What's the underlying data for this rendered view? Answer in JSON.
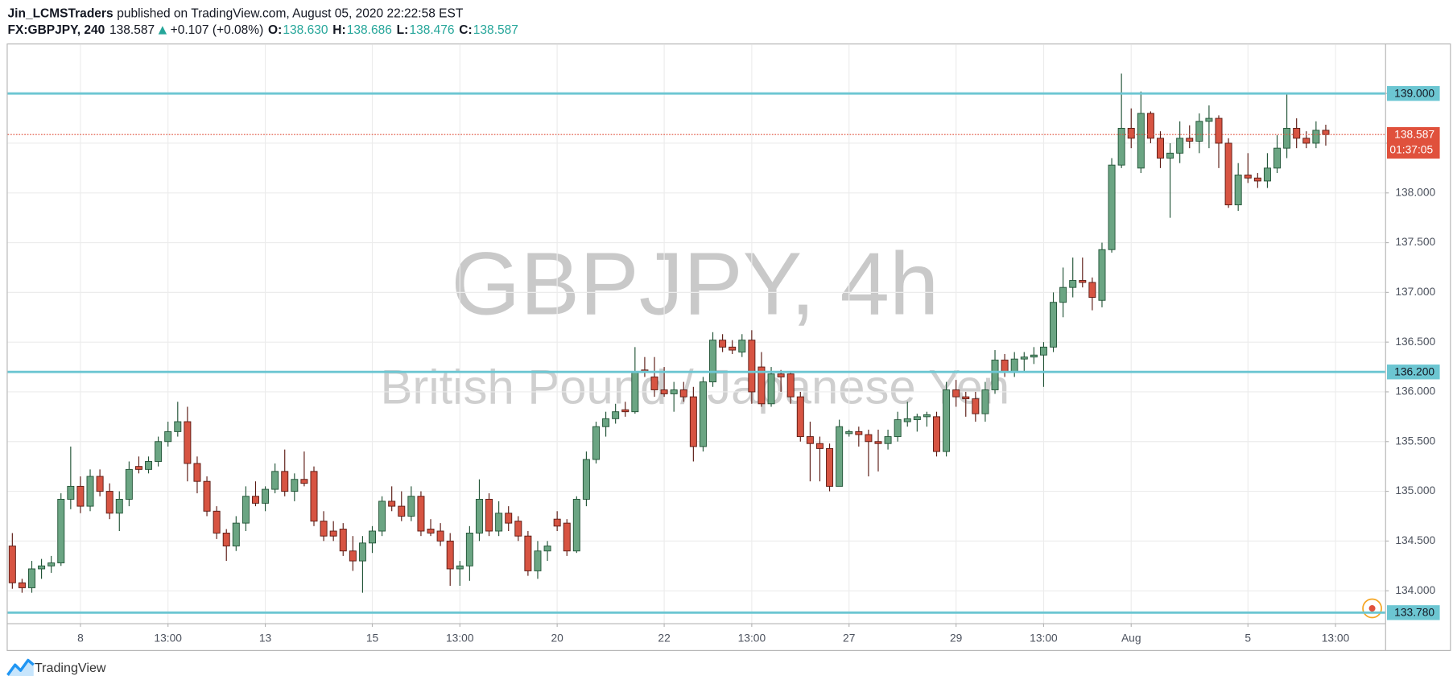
{
  "header": {
    "author": "Jin_LCMSTraders",
    "published": "published on TradingView.com, August 05, 2020 22:22:58 EST",
    "symbol": "FX:GBPJPY, 240",
    "last": "138.587",
    "change": "+0.107 (+0.08%)",
    "open_label": "O:",
    "open": "138.630",
    "high_label": "H:",
    "high": "138.686",
    "low_label": "L:",
    "low": "138.476",
    "close_label": "C:",
    "close": "138.587"
  },
  "footer": {
    "brand": "TradingView"
  },
  "chart_data": {
    "type": "candlestick",
    "title": "GBPJPY, 4h",
    "subtitle": "British Pound / Japanese Yen",
    "up_color": "#6ba583",
    "down_color": "#d75442",
    "open": [
      134.45,
      134.08,
      134.03,
      134.22,
      134.25,
      134.28,
      134.92,
      135.05,
      134.85,
      135.15,
      135.0,
      134.78,
      134.92,
      135.25,
      135.22,
      135.3,
      135.5,
      135.6,
      135.7,
      135.28,
      135.1,
      134.8,
      134.58,
      134.45,
      134.68,
      134.95,
      134.88,
      135.02,
      135.2,
      135.0,
      135.12,
      135.2,
      134.7,
      134.6,
      134.62,
      134.4,
      134.3,
      134.48,
      134.6,
      134.9,
      134.85,
      134.75,
      134.95,
      134.62,
      134.6,
      134.5,
      134.22,
      134.25,
      134.58,
      134.92,
      134.6,
      134.78,
      134.7,
      134.55,
      134.2,
      134.4,
      134.72,
      134.68,
      134.4,
      134.92,
      135.32,
      135.65,
      135.73,
      135.82,
      135.8,
      136.22,
      136.15,
      136.02,
      135.98,
      136.02,
      135.95,
      135.45,
      136.1,
      136.52,
      136.45,
      136.4,
      136.52,
      136.25,
      135.88,
      136.18,
      136.18,
      135.95,
      135.55,
      135.48,
      135.43,
      135.05,
      135.58,
      135.6,
      135.57,
      135.5,
      135.48,
      135.55,
      135.7,
      135.72,
      135.75,
      135.75,
      135.4,
      136.02,
      135.95,
      135.93,
      135.78,
      136.02,
      136.32,
      136.2,
      136.33,
      136.35,
      136.37,
      136.45,
      136.9,
      137.05,
      137.12,
      137.1,
      136.92,
      137.43,
      138.28,
      138.65,
      138.25,
      138.8,
      138.55,
      138.35,
      138.4,
      138.55,
      138.52,
      138.72,
      138.75,
      138.5,
      137.88,
      138.18,
      138.15,
      138.12,
      138.25,
      138.45,
      138.65,
      138.55,
      138.5,
      138.63
    ],
    "high": [
      134.58,
      134.12,
      134.3,
      134.32,
      134.35,
      134.98,
      135.45,
      135.15,
      135.22,
      135.22,
      135.08,
      135.0,
      135.3,
      135.35,
      135.35,
      135.55,
      135.7,
      135.9,
      135.85,
      135.35,
      135.15,
      134.85,
      134.62,
      134.75,
      135.05,
      135.1,
      135.05,
      135.28,
      135.42,
      135.18,
      135.4,
      135.25,
      134.8,
      134.7,
      134.68,
      134.55,
      134.55,
      134.65,
      134.95,
      135.05,
      135.0,
      135.05,
      135.0,
      134.72,
      134.68,
      134.58,
      134.3,
      134.65,
      135.12,
      134.98,
      134.9,
      134.85,
      134.75,
      134.6,
      134.5,
      134.5,
      134.8,
      134.72,
      134.95,
      135.4,
      135.7,
      135.8,
      135.88,
      135.9,
      136.45,
      136.35,
      136.35,
      136.25,
      136.1,
      136.1,
      136.05,
      136.15,
      136.6,
      136.58,
      136.52,
      136.58,
      136.62,
      136.4,
      136.25,
      136.22,
      136.2,
      136.0,
      135.7,
      135.55,
      135.48,
      135.72,
      135.62,
      135.65,
      135.62,
      135.62,
      135.62,
      135.8,
      135.9,
      135.78,
      135.8,
      135.8,
      136.1,
      136.12,
      136.0,
      136.0,
      136.1,
      136.42,
      136.38,
      136.4,
      136.4,
      136.45,
      136.5,
      137.0,
      137.25,
      137.35,
      137.35,
      137.15,
      137.5,
      138.35,
      139.2,
      138.85,
      139.02,
      138.82,
      138.62,
      138.5,
      138.72,
      138.68,
      138.8,
      138.88,
      138.78,
      138.55,
      138.3,
      138.4,
      138.2,
      138.4,
      138.58,
      139.0,
      138.75,
      138.62,
      138.72,
      138.686
    ],
    "low": [
      134.02,
      133.98,
      133.98,
      134.12,
      134.18,
      134.25,
      134.82,
      134.78,
      134.8,
      134.95,
      134.72,
      134.6,
      134.85,
      135.18,
      135.18,
      135.25,
      135.45,
      135.55,
      135.1,
      134.98,
      134.75,
      134.52,
      134.3,
      134.4,
      134.6,
      134.85,
      134.8,
      134.98,
      134.95,
      134.9,
      135.05,
      134.65,
      134.5,
      134.5,
      134.35,
      134.2,
      133.98,
      134.38,
      134.55,
      134.8,
      134.7,
      134.7,
      134.55,
      134.55,
      134.45,
      134.05,
      134.05,
      134.1,
      134.5,
      134.55,
      134.55,
      134.6,
      134.5,
      134.15,
      134.12,
      134.3,
      134.6,
      134.35,
      134.38,
      134.85,
      135.28,
      135.55,
      135.68,
      135.75,
      135.78,
      136.15,
      135.95,
      135.95,
      135.8,
      135.9,
      135.3,
      135.4,
      136.05,
      136.4,
      136.38,
      136.35,
      135.88,
      135.85,
      135.85,
      136.0,
      135.88,
      135.5,
      135.1,
      135.1,
      135.0,
      135.05,
      135.55,
      135.45,
      135.15,
      135.2,
      135.42,
      135.5,
      135.65,
      135.6,
      135.65,
      135.35,
      135.35,
      135.85,
      135.75,
      135.7,
      135.7,
      135.98,
      136.15,
      136.15,
      136.2,
      136.28,
      136.05,
      136.4,
      136.75,
      136.95,
      137.05,
      136.82,
      136.85,
      137.4,
      138.25,
      138.45,
      138.2,
      138.5,
      138.25,
      137.75,
      138.3,
      138.45,
      138.4,
      138.45,
      138.25,
      137.85,
      137.82,
      138.1,
      138.05,
      138.05,
      138.2,
      138.35,
      138.45,
      138.45,
      138.45,
      138.476
    ],
    "close": [
      134.08,
      134.03,
      134.22,
      134.25,
      134.28,
      134.92,
      135.05,
      134.85,
      135.15,
      135.0,
      134.78,
      134.92,
      135.22,
      135.22,
      135.3,
      135.5,
      135.6,
      135.7,
      135.28,
      135.1,
      134.8,
      134.58,
      134.45,
      134.68,
      134.95,
      134.88,
      135.02,
      135.2,
      135.0,
      135.12,
      135.08,
      134.7,
      134.55,
      134.55,
      134.4,
      134.3,
      134.48,
      134.6,
      134.9,
      134.85,
      134.75,
      134.95,
      134.6,
      134.58,
      134.5,
      134.22,
      134.25,
      134.58,
      134.92,
      134.6,
      134.78,
      134.68,
      134.55,
      134.2,
      134.4,
      134.45,
      134.65,
      134.4,
      134.92,
      135.32,
      135.65,
      135.73,
      135.8,
      135.8,
      136.2,
      136.2,
      136.02,
      135.98,
      136.02,
      135.95,
      135.45,
      136.1,
      136.52,
      136.45,
      136.42,
      136.52,
      136.0,
      135.88,
      136.18,
      136.15,
      135.95,
      135.55,
      135.48,
      135.43,
      135.05,
      135.65,
      135.6,
      135.57,
      135.5,
      135.48,
      135.55,
      135.72,
      135.73,
      135.75,
      135.77,
      135.4,
      136.02,
      135.95,
      135.93,
      135.78,
      136.02,
      136.32,
      136.2,
      136.33,
      136.35,
      136.37,
      136.45,
      136.9,
      137.05,
      137.12,
      137.1,
      136.95,
      137.43,
      138.28,
      138.65,
      138.55,
      138.8,
      138.55,
      138.35,
      138.4,
      138.55,
      138.52,
      138.72,
      138.75,
      138.5,
      137.88,
      138.18,
      138.15,
      138.12,
      138.25,
      138.45,
      138.65,
      138.55,
      138.5,
      138.63,
      138.587
    ],
    "xlim": [
      -0.48,
      141.1
    ],
    "xticks": [
      {
        "value": 7,
        "label": "8"
      },
      {
        "value": 16,
        "label": "13:00"
      },
      {
        "value": 26,
        "label": "13"
      },
      {
        "value": 37,
        "label": "15"
      },
      {
        "value": 46,
        "label": "13:00"
      },
      {
        "value": 56,
        "label": "20"
      },
      {
        "value": 67,
        "label": "22"
      },
      {
        "value": 76,
        "label": "13:00"
      },
      {
        "value": 86,
        "label": "27"
      },
      {
        "value": 97,
        "label": "29"
      },
      {
        "value": 106,
        "label": "13:00"
      },
      {
        "value": 115,
        "label": "Aug"
      },
      {
        "value": 127,
        "label": "5"
      },
      {
        "value": 136,
        "label": "13:00"
      }
    ],
    "ylim": [
      133.674,
      139.493
    ],
    "yticks": [
      {
        "value": 134,
        "label": "134.000"
      },
      {
        "value": 134.5,
        "label": "134.500"
      },
      {
        "value": 135,
        "label": "135.000"
      },
      {
        "value": 135.5,
        "label": "135.500"
      },
      {
        "value": 136,
        "label": "136.000"
      },
      {
        "value": 136.5,
        "label": "136.500"
      },
      {
        "value": 137,
        "label": "137.000"
      },
      {
        "value": 137.5,
        "label": "137.500"
      },
      {
        "value": 138,
        "label": "138.000"
      },
      {
        "value": 138.5,
        "label": "138.500"
      },
      {
        "value": 139,
        "label": "139.000"
      }
    ],
    "grid": true,
    "levels": [
      {
        "value": 139,
        "label": "139.000"
      },
      {
        "value": 136.2,
        "label": "136.200"
      },
      {
        "value": 133.78,
        "label": "133.780"
      }
    ],
    "level_color": "#6cc6d2",
    "last_price": {
      "value": 138.587,
      "label": "138.587"
    },
    "last_price_color": "#e0513c",
    "countdown": "01:37:05"
  }
}
